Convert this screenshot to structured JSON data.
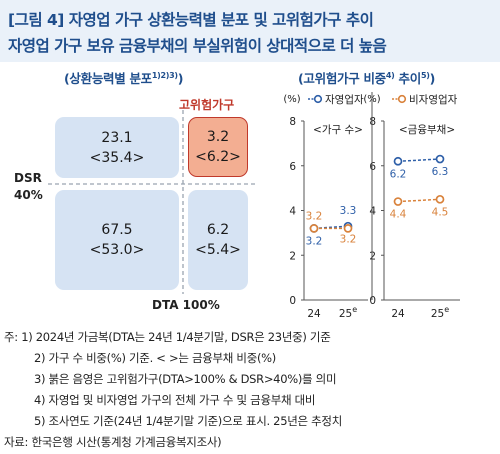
{
  "title": {
    "line1": "[그림 4] 자영업 가구 상환능력별 분포 및 고위험가구 추이",
    "line2": "자영업 가구 보유 금융부채의 부실위험이 상대적으로 더 높음"
  },
  "left_panel": {
    "subtitle": "(상환능력별 분포",
    "subtitle_sup": "1)2)3)",
    "subtitle_end": ")",
    "high_risk_label": "고위험가구",
    "y_axis_label_1": "DSR",
    "y_axis_label_2": "40%",
    "x_axis_label": "DTA 100%",
    "cells": {
      "top_left": {
        "a": "23.1",
        "b": "<35.4>"
      },
      "top_right": {
        "a": "3.2",
        "b": "<6.2>"
      },
      "bottom_left": {
        "a": "67.5",
        "b": "<53.0>"
      },
      "bottom_right": {
        "a": "6.2",
        "b": "<5.4>"
      }
    }
  },
  "right_panel": {
    "subtitle_pre": "(고위험가구 비중",
    "subtitle_sup1": "4)",
    "subtitle_mid": " 추이",
    "subtitle_sup2": "5)",
    "subtitle_end": ")"
  },
  "chart_data": {
    "type": "line",
    "ylim": [
      0,
      8
    ],
    "yticks": [
      "0",
      "2",
      "4",
      "6",
      "8"
    ],
    "unit": "(%)",
    "categories": [
      "24",
      "25"
    ],
    "category_superscript": [
      "",
      "e"
    ],
    "series_styles": {
      "자영업자": {
        "color": "#2e5fa8"
      },
      "비자영업자": {
        "color": "#d9823b"
      }
    },
    "panels": [
      {
        "label": "<가구 수>",
        "series": [
          {
            "name": "자영업자",
            "values": [
              3.2,
              3.3
            ]
          },
          {
            "name": "비자영업자",
            "values": [
              3.2,
              3.2
            ]
          }
        ]
      },
      {
        "label": "<금융부채>",
        "series": [
          {
            "name": "자영업자",
            "values": [
              6.2,
              6.3
            ]
          },
          {
            "name": "비자영업자",
            "values": [
              4.4,
              4.5
            ]
          }
        ]
      }
    ]
  },
  "footnotes": [
    "주: 1) 2024년 가금복(DTA는 24년 1/4분기말, DSR은 23년중) 기준",
    "2) 가구 수 비중(%) 기준. <   >는 금융부채 비중(%)",
    "3) 붉은 음영은 고위험가구(DTA>100% & DSR>40%)를 의미",
    "4) 자영업 및 비자영업 가구의 전체 가구 수 및 금융부채 대비",
    "5) 조사연도 기준(24년 1/4분기말 기준)으로 표시. 25년은 추정치",
    "자료: 한국은행 시산(통계청 가계금융복지조사)"
  ]
}
